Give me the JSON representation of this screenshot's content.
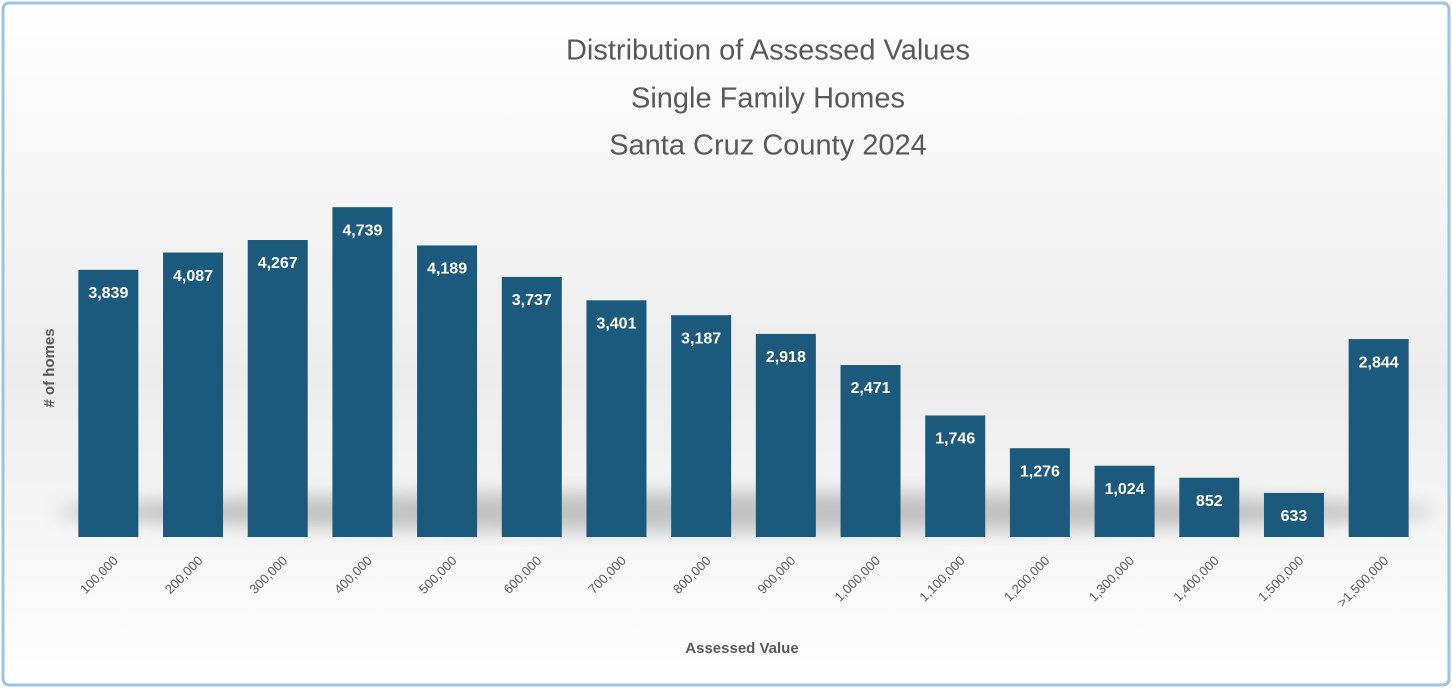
{
  "chart_data": {
    "type": "bar",
    "title": "Distribution of Assessed Values",
    "subtitle": [
      "Single Family Homes",
      "Santa Cruz County 2024"
    ],
    "xlabel": "Assessed Value",
    "ylabel": "# of homes",
    "categories": [
      "100,000",
      "200,000",
      "300,000",
      "400,000",
      "500,000",
      "600,000",
      "700,000",
      "800,000",
      "900,000",
      "1,000,000",
      "1,100,000",
      "1,200,000",
      "1,300,000",
      "1,400,000",
      "1,500,000",
      ">1,500,000"
    ],
    "values": [
      3839,
      4087,
      4267,
      4739,
      4189,
      3737,
      3401,
      3187,
      2918,
      2471,
      1746,
      1276,
      1024,
      852,
      633,
      2844
    ],
    "value_labels": [
      "3,839",
      "4,087",
      "4,267",
      "4,739",
      "4,189",
      "3,737",
      "3,401",
      "3,187",
      "2,918",
      "2,471",
      "1,746",
      "1,276",
      "1,024",
      "852",
      "633",
      "2,844"
    ],
    "color": "#1b5a7c",
    "ylim": [
      0,
      5000
    ]
  }
}
